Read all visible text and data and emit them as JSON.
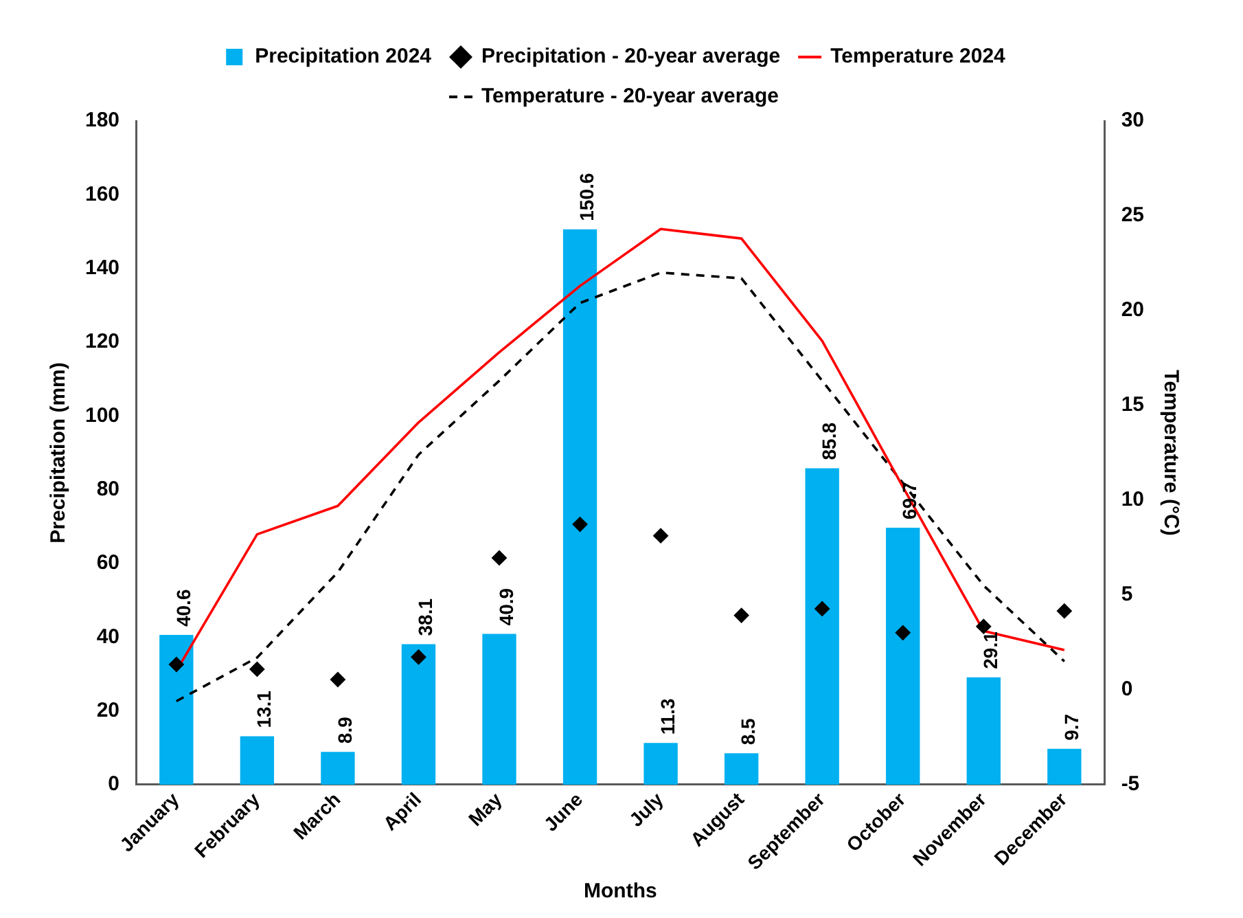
{
  "chart_data": {
    "type": "bar",
    "xlabel": "Months",
    "ylabel": "Precipitation (mm)",
    "y2label": "Temperature (°C)",
    "categories": [
      "January",
      "February",
      "March",
      "April",
      "May",
      "June",
      "July",
      "August",
      "September",
      "October",
      "November",
      "December"
    ],
    "ylim": [
      0,
      180
    ],
    "yticks": [
      0,
      20,
      40,
      60,
      80,
      100,
      120,
      140,
      160,
      180
    ],
    "y2lim": [
      -5,
      30
    ],
    "y2ticks": [
      -5,
      0,
      5,
      10,
      15,
      20,
      25,
      30
    ],
    "grid": false,
    "legend": "top",
    "series": [
      {
        "name": "Precipitation 2024",
        "color": "#00b0f0",
        "values": [
          40.6,
          13.1,
          8.9,
          38.1,
          40.9,
          150.6,
          11.3,
          8.5,
          85.8,
          69.7,
          29.1,
          9.7
        ],
        "data_labels": true
      },
      {
        "name": "Precipitation - 20-year average",
        "type": "scatter",
        "marker": "diamond",
        "color": "#000000",
        "values": [
          32.6,
          31.3,
          28.5,
          34.6,
          61.5,
          70.6,
          67.5,
          45.9,
          47.7,
          41.2,
          42.9,
          47.1
        ]
      },
      {
        "name": "Temperature 2024",
        "type": "line",
        "axis": "y2",
        "marker": "none",
        "line_style": "solid",
        "color": "#ff0000",
        "values": [
          1.0,
          8.2,
          9.7,
          14.1,
          17.8,
          21.3,
          24.3,
          23.8,
          18.4,
          10.7,
          3.1,
          2.1
        ]
      },
      {
        "name": "Temperature - 20-year average",
        "type": "line",
        "axis": "y2",
        "marker": "none",
        "line_style": "dashed",
        "color": "#000000",
        "values": [
          -0.6,
          1.7,
          6.2,
          12.4,
          16.3,
          20.4,
          22.0,
          21.7,
          16.3,
          10.9,
          5.5,
          1.5
        ]
      }
    ]
  }
}
